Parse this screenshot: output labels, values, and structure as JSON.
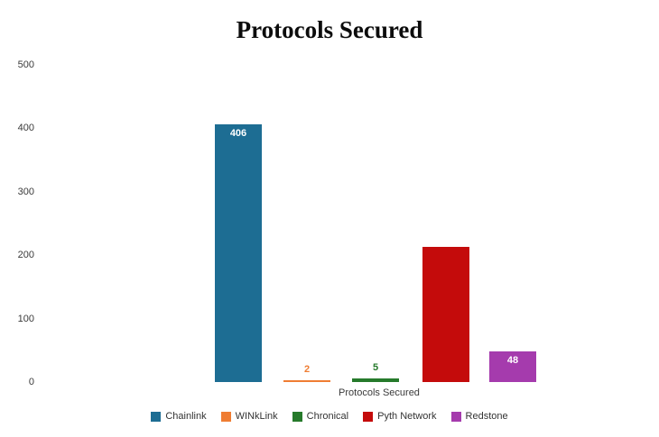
{
  "title": "Protocols Secured",
  "chart_data": {
    "type": "bar",
    "title": "Protocols Secured",
    "xlabel": "Protocols Secured",
    "ylabel": "",
    "ylim": [
      0,
      500
    ],
    "yticks": [
      0,
      100,
      200,
      300,
      400,
      500
    ],
    "grid": false,
    "legend_position": "bottom",
    "categories": [
      "Protocols Secured"
    ],
    "series": [
      {
        "name": "Chainlink",
        "value": 406,
        "color": "#1d6d93",
        "label": "406",
        "label_style": "inside-white"
      },
      {
        "name": "WINkLink",
        "value": 2,
        "color": "#ef7d33",
        "label": "2",
        "label_style": "above-colored"
      },
      {
        "name": "Chronical",
        "value": 5,
        "color": "#267a2b",
        "label": "5",
        "label_style": "above-colored"
      },
      {
        "name": "Pyth Network",
        "value": 213,
        "color": "#c40b0b",
        "label": "",
        "label_style": "none"
      },
      {
        "name": "Redstone",
        "value": 48,
        "color": "#a53bad",
        "label": "48",
        "label_style": "inside-white"
      }
    ]
  }
}
